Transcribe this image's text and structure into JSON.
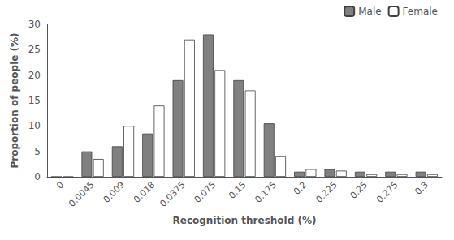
{
  "chart_data": {
    "type": "bar",
    "xlabel": "Recognition threshold (%)",
    "ylabel": "Proportion of people (%)",
    "categories": [
      "0",
      "0.0045",
      "0.009",
      "0.018",
      "0.0375",
      "0.075",
      "0.15",
      "0.175",
      "0.2",
      "0.225",
      "0.25",
      "0.275",
      "0.3"
    ],
    "series": [
      {
        "name": "Male",
        "color": "#808080",
        "values": [
          0,
          5,
          6,
          8.5,
          19,
          28,
          19,
          10.5,
          1,
          1.5,
          1,
          1,
          1
        ]
      },
      {
        "name": "Female",
        "color": "#ffffff",
        "values": [
          0,
          3.5,
          10,
          14,
          27,
          21,
          17,
          4,
          1.5,
          1.2,
          0.5,
          0.5,
          0.5
        ]
      }
    ],
    "ylim": [
      0,
      30
    ],
    "yticks": [
      0,
      5,
      10,
      15,
      20,
      25,
      30
    ],
    "legend": "upper right",
    "grid": false
  }
}
